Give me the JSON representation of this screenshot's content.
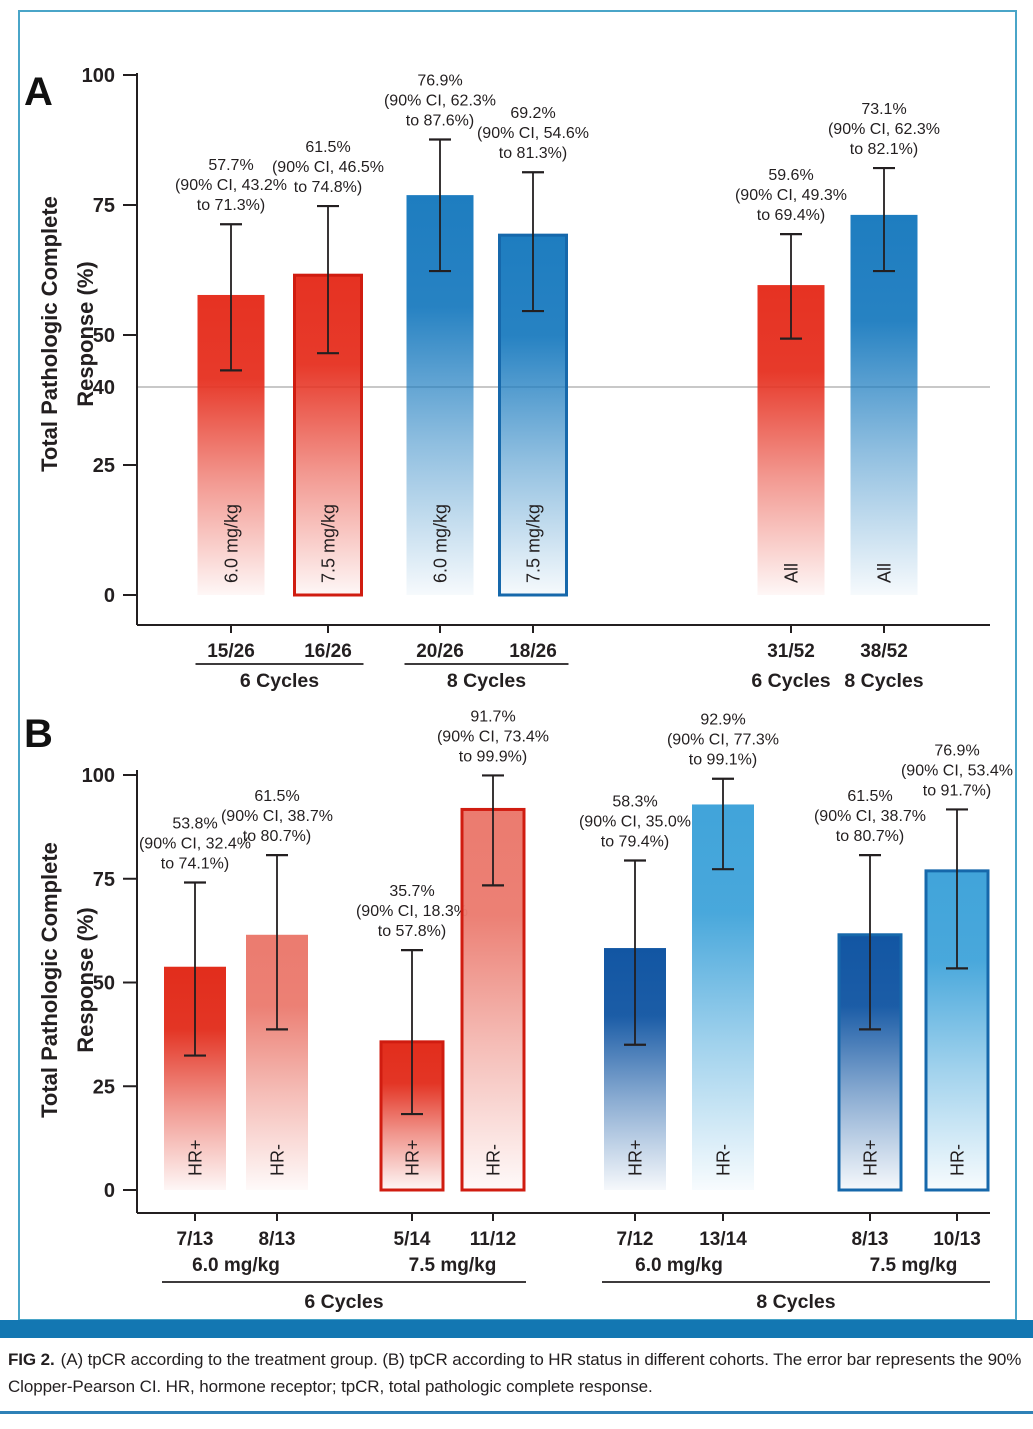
{
  "figure": {
    "panel_a_label": "A",
    "panel_b_label": "B",
    "caption_bold": "FIG 2.",
    "caption_text": "(A) tpCR according to the treatment group. (B) tpCR according to HR status in different cohorts. The error bar represents the 90% Clopper-Pearson CI. HR, hormone receptor; tpCR, total pathologic complete response."
  },
  "colors": {
    "text": "#231f20",
    "red": "#e63222",
    "blue": "#1e7dc0",
    "hr_pos_red": "#e22d1c",
    "hr_neg_red": "#eb7b6f",
    "hr_pos_blue": "#1256a3",
    "hr_neg_blue": "#41a4da",
    "red_border": "#d01c10",
    "blue_border": "#1668ab",
    "reference_line": "#b5b5b5",
    "frame_border": "#4aa5c8",
    "band_blue": "#1377b2",
    "bottom_rule": "#2e81b7"
  },
  "chart_data": [
    {
      "type": "bar",
      "panel": "A",
      "title": "",
      "ylabel_lines": [
        "Total Pathologic Complete",
        "Response (%)"
      ],
      "ylim": [
        0,
        100
      ],
      "yticks": [
        0,
        25,
        50,
        75,
        100
      ],
      "reference_line": 40,
      "ci_label_format": "{value}% | (90% CI, {low}% | to {high}%)",
      "bars": [
        {
          "inner_label": "6.0 mg/kg",
          "fraction": "15/26",
          "value": 57.7,
          "ci_low": 43.2,
          "ci_high": 71.3,
          "color": "red",
          "outline": null
        },
        {
          "inner_label": "7.5 mg/kg",
          "fraction": "16/26",
          "value": 61.5,
          "ci_low": 46.5,
          "ci_high": 74.8,
          "color": "red",
          "outline": "red_border"
        },
        {
          "inner_label": "6.0 mg/kg",
          "fraction": "20/26",
          "value": 76.9,
          "ci_low": 62.3,
          "ci_high": 87.6,
          "color": "blue",
          "outline": null
        },
        {
          "inner_label": "7.5 mg/kg",
          "fraction": "18/26",
          "value": 69.2,
          "ci_low": 54.6,
          "ci_high": 81.3,
          "color": "blue",
          "outline": "blue_border"
        },
        {
          "inner_label": "All",
          "fraction": "31/52",
          "value": 59.6,
          "ci_low": 49.3,
          "ci_high": 69.4,
          "color": "red",
          "outline": null
        },
        {
          "inner_label": "All",
          "fraction": "38/52",
          "value": 73.1,
          "ci_low": 62.3,
          "ci_high": 82.1,
          "color": "blue",
          "outline": null
        }
      ],
      "x_groups": [
        {
          "label": "6 Cycles",
          "from": 0,
          "to": 1,
          "underline": true
        },
        {
          "label": "8 Cycles",
          "from": 2,
          "to": 3,
          "underline": true
        },
        {
          "label": "6 Cycles",
          "from": 4,
          "to": 4,
          "underline": false
        },
        {
          "label": "8 Cycles",
          "from": 5,
          "to": 5,
          "underline": false
        }
      ]
    },
    {
      "type": "bar",
      "panel": "B",
      "title": "",
      "ylabel_lines": [
        "Total Pathologic Complete",
        "Response (%)"
      ],
      "ylim": [
        0,
        100
      ],
      "yticks": [
        0,
        25,
        50,
        75,
        100
      ],
      "reference_line": null,
      "ci_label_format": "{value}% | (90% CI, {low}% | to {high}%)",
      "bars": [
        {
          "inner_label": "HR+",
          "fraction": "7/13",
          "value": 53.8,
          "ci_low": 32.4,
          "ci_high": 74.1,
          "color": "hr_pos_red",
          "outline": null
        },
        {
          "inner_label": "HR-",
          "fraction": "8/13",
          "value": 61.5,
          "ci_low": 38.7,
          "ci_high": 80.7,
          "color": "hr_neg_red",
          "outline": null
        },
        {
          "inner_label": "HR+",
          "fraction": "5/14",
          "value": 35.7,
          "ci_low": 18.3,
          "ci_high": 57.8,
          "color": "hr_pos_red",
          "outline": "red_border"
        },
        {
          "inner_label": "HR-",
          "fraction": "11/12",
          "value": 91.7,
          "ci_low": 73.4,
          "ci_high": 99.9,
          "color": "hr_neg_red",
          "outline": "red_border"
        },
        {
          "inner_label": "HR+",
          "fraction": "7/12",
          "value": 58.3,
          "ci_low": 35.0,
          "ci_high": 79.4,
          "color": "hr_pos_blue",
          "outline": null
        },
        {
          "inner_label": "HR-",
          "fraction": "13/14",
          "value": 92.9,
          "ci_low": 77.3,
          "ci_high": 99.1,
          "color": "hr_neg_blue",
          "outline": null
        },
        {
          "inner_label": "HR+",
          "fraction": "8/13",
          "value": 61.5,
          "ci_low": 38.7,
          "ci_high": 80.7,
          "color": "hr_pos_blue",
          "outline": "blue_border"
        },
        {
          "inner_label": "HR-",
          "fraction": "10/13",
          "value": 76.9,
          "ci_low": 53.4,
          "ci_high": 91.7,
          "color": "hr_neg_blue",
          "outline": "blue_border"
        }
      ],
      "dose_groups": [
        {
          "label": "6.0 mg/kg",
          "from": 0,
          "to": 1
        },
        {
          "label": "7.5 mg/kg",
          "from": 2,
          "to": 3
        },
        {
          "label": "6.0 mg/kg",
          "from": 4,
          "to": 5
        },
        {
          "label": "7.5 mg/kg",
          "from": 6,
          "to": 7
        }
      ],
      "x_groups": [
        {
          "label": "6 Cycles",
          "from": 0,
          "to": 3,
          "underline": true
        },
        {
          "label": "8 Cycles",
          "from": 4,
          "to": 7,
          "underline": true
        }
      ]
    }
  ]
}
